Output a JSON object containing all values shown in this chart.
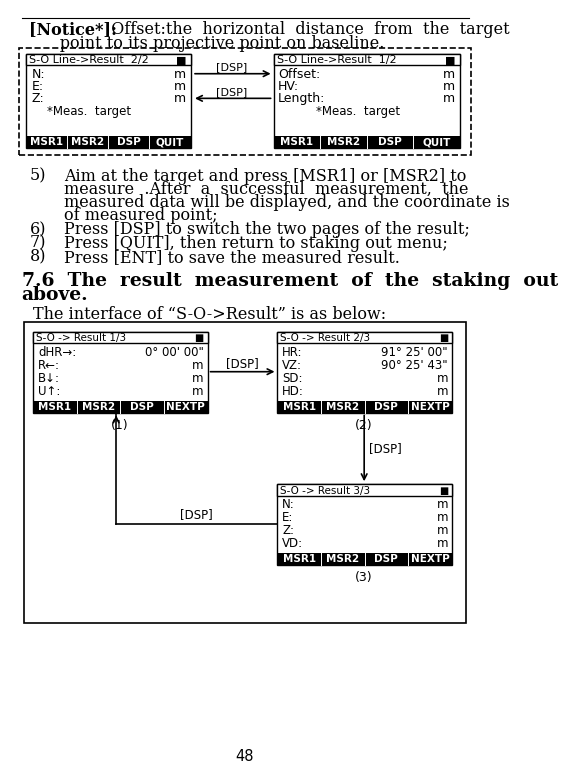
{
  "page_num": "48",
  "bg_color": "#ffffff",
  "text_color": "#000000",
  "notice_bold": "[Notice*]:",
  "notice_line1": "  Offset:the  horizontal  distance  from  the  target",
  "notice_line2": "      point to its projective point on baseline.",
  "top_left_title": "S-O Line->Result  2/2",
  "top_left_rows": [
    "N:",
    "E:",
    "Z:"
  ],
  "top_left_vals": [
    "m",
    "m",
    "m"
  ],
  "top_left_meas": "*Meas.  target",
  "top_left_btns": [
    "MSR1",
    "MSR2",
    "DSP",
    "QUIT"
  ],
  "top_right_title": "S-O Line->Result  1/2",
  "top_right_rows": [
    "Offset:",
    "HV:",
    "Length:"
  ],
  "top_right_vals": [
    "m",
    "m",
    "m"
  ],
  "top_right_meas": "*Meas.  target",
  "top_right_btns": [
    "MSR1",
    "MSR2",
    "DSP",
    "QUIT"
  ],
  "list5_num": "5)",
  "list5_line1": "Aim at the target and press [MSR1] or [MSR2] to",
  "list5_line2": "measure  .After  a  successful  measurement,  the",
  "list5_line3": "measured data will be displayed, and the coordinate is",
  "list5_line4": "of measured point;",
  "list6": "Press [DSP] to switch the two pages of the result;",
  "list7": "Press [QUIT], then return to staking out menu;",
  "list8": "Press [ENT] to save the measured result.",
  "sec_line1": "7.6  The  result  measurement  of  the  staking  out",
  "sec_line2": "above.",
  "sec_sub": "The interface of “S-O->Result” is as below:",
  "s1_title": "S-O -> Result 1/3",
  "s1_rows": [
    "dHR→:",
    "R←:",
    "B↓:",
    "U↑:"
  ],
  "s1_vals": [
    "0° 00' 00\"",
    "m",
    "m",
    "m"
  ],
  "s1_btns": [
    "MSR1",
    "MSR2",
    "DSP",
    "NEXTP"
  ],
  "s1_label": "(1)",
  "s2_title": "S-O -> Result 2/3",
  "s2_rows": [
    "HR:",
    "VZ:",
    "SD:",
    "HD:"
  ],
  "s2_vals": [
    "91° 25' 00\"",
    "90° 25' 43\"",
    "m",
    "m"
  ],
  "s2_btns": [
    "MSR1",
    "MSR2",
    "DSP",
    "NEXTP"
  ],
  "s2_label": "(2)",
  "s3_title": "S-O -> Result 3/3",
  "s3_rows": [
    "N:",
    "E:",
    "Z:",
    "VD:"
  ],
  "s3_vals": [
    "m",
    "m",
    "m",
    "m"
  ],
  "s3_btns": [
    "MSR1",
    "MSR2",
    "DSP",
    "NEXTP"
  ],
  "s3_label": "(3)"
}
